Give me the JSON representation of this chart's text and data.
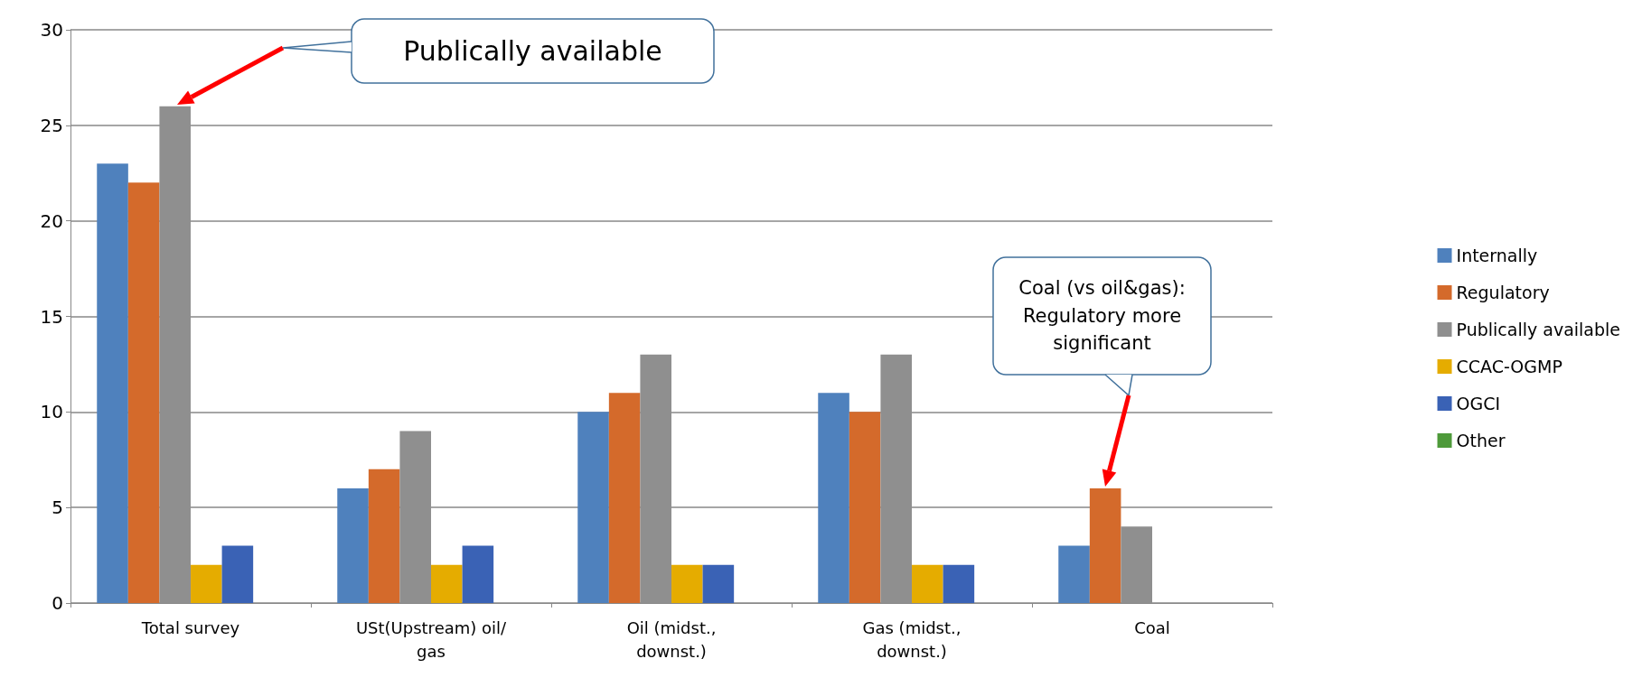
{
  "chart_data": {
    "type": "bar",
    "categories": [
      "Total survey",
      "USt(Upstream) oil/gas",
      "Oil (midst.,downst.)",
      "Gas (midst.,downst.)",
      "Coal"
    ],
    "series": [
      {
        "name": "Internally",
        "color": "#4f81bd",
        "values": [
          23,
          6,
          10,
          11,
          3
        ]
      },
      {
        "name": "Regulatory",
        "color": "#d46a2b",
        "values": [
          22,
          7,
          11,
          10,
          6
        ]
      },
      {
        "name": "Publically available",
        "color": "#8f8f8f",
        "values": [
          26,
          9,
          13,
          13,
          4
        ]
      },
      {
        "name": "CCAC-OGMP",
        "color": "#e5ac00",
        "values": [
          2,
          2,
          2,
          2,
          0
        ]
      },
      {
        "name": "OGCI",
        "color": "#3a62b5",
        "values": [
          3,
          3,
          2,
          2,
          0
        ]
      },
      {
        "name": "Other",
        "color": "#4e9a3a",
        "values": [
          0,
          0,
          0,
          0,
          0
        ]
      }
    ],
    "ylim": [
      0,
      30
    ],
    "yticks": [
      0,
      5,
      10,
      15,
      20,
      25,
      30
    ],
    "grid": "y",
    "legend": "right",
    "annotations": [
      "Publically available",
      "Coal (vs oil&gas): Regulatory more significant"
    ]
  }
}
